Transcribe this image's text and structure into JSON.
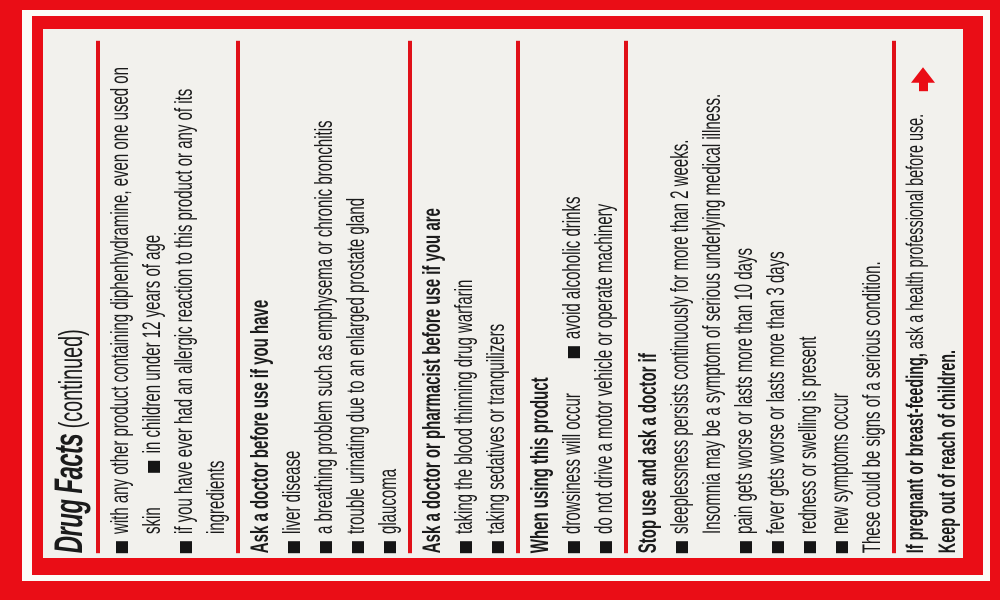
{
  "label": {
    "title_bold": "Drug Facts",
    "title_continued": " (continued)",
    "colors": {
      "accent_red": "#ea0d16",
      "panel_background": "#f2f1ed",
      "text": "#1b1b1b"
    },
    "sections": {
      "do_not_use_continued": {
        "bullet1_main": "with any other product containing diphenhydramine, even one used on skin",
        "bullet1_secondary": "in children under 12 years of age",
        "bullet2": "if you have ever had an allergic reaction to this product or any of its ingredients"
      },
      "ask_doctor": {
        "heading": "Ask a doctor before use if you have",
        "items": [
          "liver disease",
          "a breathing problem such as emphysema or chronic bronchitis",
          "trouble urinating due to an enlarged prostate gland",
          "glaucoma"
        ]
      },
      "ask_pharmacist": {
        "heading": "Ask a doctor or pharmacist before use if you are",
        "items": [
          "taking the blood thinning drug warfarin",
          "taking sedatives or tranquilizers"
        ]
      },
      "when_using": {
        "heading": "When using this product",
        "bullet1_main": "drowsiness will occur",
        "bullet1_secondary": "avoid alcoholic drinks",
        "bullet2": "do not drive a motor vehicle or operate machinery"
      },
      "stop_use": {
        "heading": "Stop use and ask a doctor if",
        "bullet1_line1": "sleeplessness persists continuously for more than 2 weeks.",
        "bullet1_line2": "Insomnia may be a symptom of serious underlying medical illness.",
        "items": [
          "pain gets worse or lasts more than 10 days",
          "fever gets worse or lasts more than 3 days",
          "redness or swelling is present",
          "new symptoms occur"
        ],
        "footnote": "These could be signs of a serious condition."
      },
      "pregnancy": {
        "bold": "If pregnant or breast-feeding,",
        "rest": " ask a health professional before use."
      },
      "keep_out": "Keep out of reach of children."
    }
  }
}
